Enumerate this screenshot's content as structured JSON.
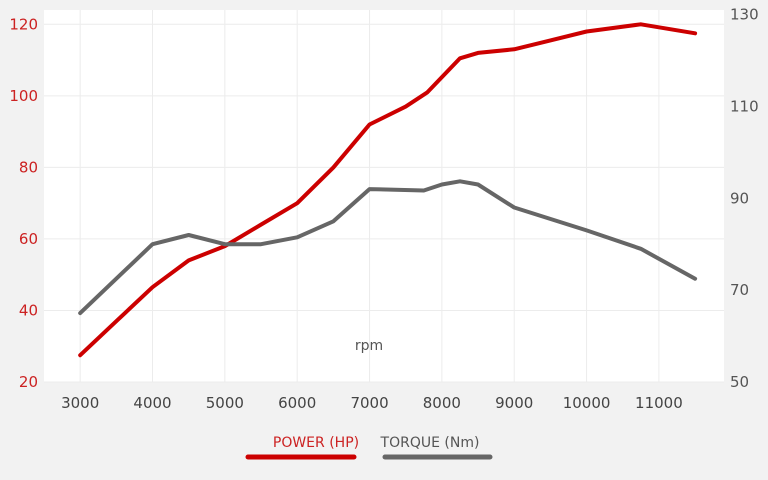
{
  "chart_data": {
    "type": "line",
    "xlabel": "rpm",
    "x_ticks": [
      "3000",
      "4000",
      "5000",
      "6000",
      "7000",
      "8000",
      "9000",
      "10000",
      "11000"
    ],
    "xlim": [
      2500,
      11900
    ],
    "y_left": {
      "ticks": [
        "20",
        "40",
        "60",
        "80",
        "100",
        "120"
      ],
      "lim": [
        20,
        124
      ],
      "color": "#cc2222"
    },
    "y_right": {
      "ticks": [
        "50",
        "70",
        "90",
        "110",
        "130"
      ],
      "lim": [
        50,
        131
      ],
      "color": "#555555"
    },
    "grid": true,
    "legend_position": "bottom",
    "series": [
      {
        "name": "POWER (HP)",
        "axis": "left",
        "color": "#cc0000",
        "points": [
          [
            3000,
            27.5
          ],
          [
            3500,
            37
          ],
          [
            4000,
            46.5
          ],
          [
            4500,
            54
          ],
          [
            5000,
            58
          ],
          [
            5500,
            64
          ],
          [
            6000,
            70
          ],
          [
            6500,
            80
          ],
          [
            7000,
            92
          ],
          [
            7500,
            97
          ],
          [
            7800,
            101
          ],
          [
            8250,
            110.5
          ],
          [
            8500,
            112
          ],
          [
            9000,
            113
          ],
          [
            9500,
            115.5
          ],
          [
            10000,
            118
          ],
          [
            10750,
            120
          ],
          [
            11500,
            117.5
          ]
        ]
      },
      {
        "name": "TORQUE (Nm)",
        "axis": "right",
        "color": "#666666",
        "points": [
          [
            3000,
            65
          ],
          [
            4000,
            80
          ],
          [
            4500,
            82
          ],
          [
            5000,
            80
          ],
          [
            5500,
            80
          ],
          [
            6000,
            81.5
          ],
          [
            6500,
            85
          ],
          [
            7000,
            92
          ],
          [
            7750,
            91.7
          ],
          [
            8000,
            93
          ],
          [
            8250,
            93.7
          ],
          [
            8500,
            93
          ],
          [
            9000,
            88
          ],
          [
            10000,
            83
          ],
          [
            10750,
            79
          ],
          [
            11500,
            72.5
          ]
        ]
      }
    ]
  }
}
